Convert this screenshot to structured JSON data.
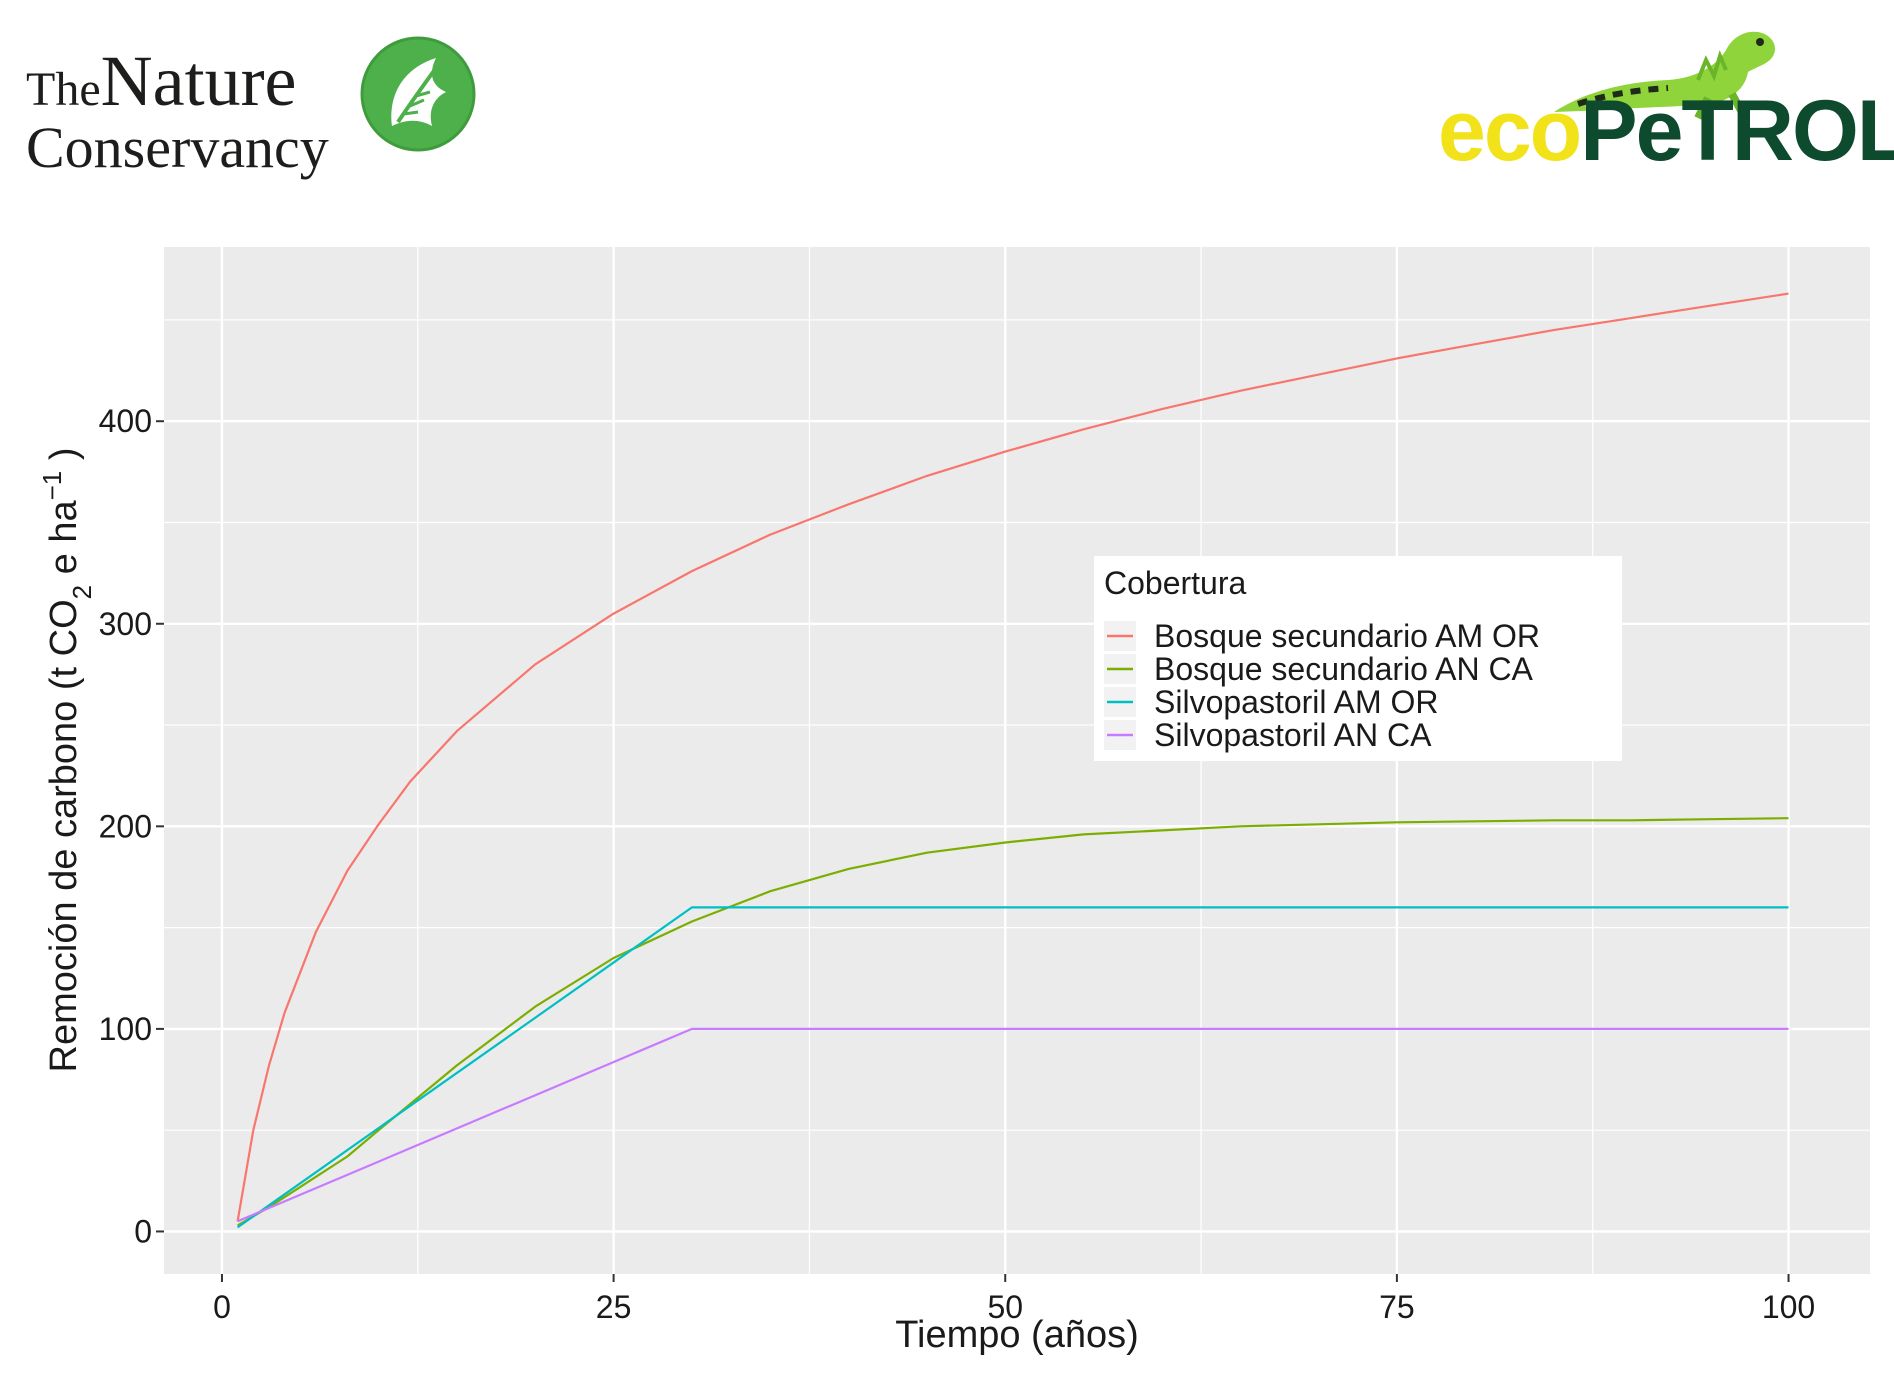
{
  "logos": {
    "left": {
      "line1_small": "The",
      "line1_big": "Nature",
      "line2": "Conservancy"
    },
    "right": {
      "part1": "eco",
      "part2": "PeTROL"
    }
  },
  "chart_data": {
    "type": "line",
    "xlabel": "Tiempo (años)",
    "ylabel_main": "Remoción de carbono (t  CO",
    "ylabel_sub": "2",
    "ylabel_mid": " e ha",
    "ylabel_sup": "−1",
    "ylabel_end": " )",
    "xlim": [
      -3.7,
      105.2
    ],
    "ylim": [
      -21,
      486
    ],
    "x_ticks": [
      0,
      25,
      50,
      75,
      100
    ],
    "y_ticks": [
      0,
      100,
      200,
      300,
      400
    ],
    "x_tick_labels": [
      "0",
      "25",
      "50",
      "75",
      "100"
    ],
    "y_tick_labels": [
      "0",
      "100",
      "200",
      "300",
      "400"
    ],
    "grid": true,
    "background": "#ebebeb",
    "legend": {
      "title": "Cobertura",
      "position": "inside-right",
      "entries": [
        "Bosque secundario AM OR",
        "Bosque secundario AN CA",
        "Silvopastoril AM OR",
        "Silvopastoril AN CA"
      ]
    },
    "series": [
      {
        "name": "Bosque secundario AM OR",
        "color": "#F8766D",
        "x": [
          1,
          2,
          3,
          4,
          6,
          8,
          10,
          12,
          15,
          20,
          25,
          30,
          35,
          40,
          45,
          50,
          55,
          60,
          65,
          70,
          75,
          80,
          85,
          90,
          95,
          100
        ],
        "y": [
          5,
          50,
          82,
          108,
          148,
          178,
          201,
          222,
          247,
          280,
          305,
          326,
          344,
          359,
          373,
          385,
          396,
          406,
          415,
          423,
          431,
          438,
          445,
          451,
          457,
          463
        ]
      },
      {
        "name": "Bosque secundario AN CA",
        "color": "#7CAE00",
        "x": [
          1,
          3,
          5,
          8,
          10,
          15,
          20,
          25,
          30,
          35,
          40,
          45,
          50,
          55,
          60,
          65,
          70,
          75,
          80,
          85,
          90,
          95,
          100
        ],
        "y": [
          3,
          12,
          22,
          37,
          50,
          82,
          111,
          135,
          153,
          168,
          179,
          187,
          192,
          196,
          198,
          200,
          201,
          202,
          202.5,
          203,
          203,
          203.5,
          204
        ]
      },
      {
        "name": "Silvopastoril AM OR",
        "color": "#00BFC4",
        "x": [
          1,
          30,
          100
        ],
        "y": [
          2,
          160,
          160
        ]
      },
      {
        "name": "Silvopastoril AN CA",
        "color": "#C77CFF",
        "x": [
          1,
          30,
          100
        ],
        "y": [
          5,
          100,
          100
        ]
      }
    ]
  }
}
